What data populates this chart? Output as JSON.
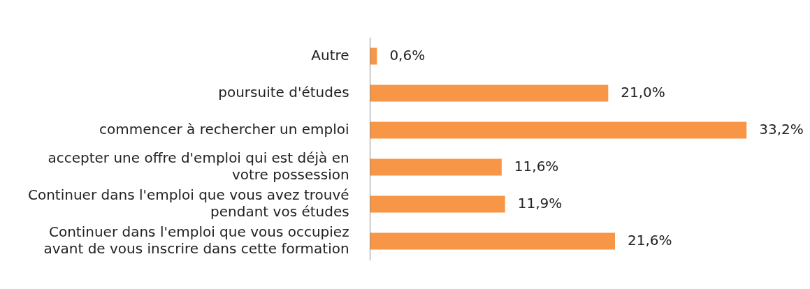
{
  "chart_data": {
    "type": "bar",
    "orientation": "horizontal",
    "categories": [
      "Autre",
      "poursuite d'études",
      "commencer à rechercher un emploi",
      "accepter une offre d'emploi qui est déjà en votre possession",
      "Continuer dans l'emploi que vous avez trouvé pendant vos études",
      "Continuer dans l'emploi que vous occupiez avant de vous inscrire dans cette formation"
    ],
    "values": [
      0.6,
      21.0,
      33.2,
      11.6,
      11.9,
      21.6
    ],
    "value_labels": [
      "0,6%",
      "21,0%",
      "33,2%",
      "11,6%",
      "11,9%",
      "21,6%"
    ],
    "color": "#f79646",
    "grid": false,
    "legend": false
  }
}
